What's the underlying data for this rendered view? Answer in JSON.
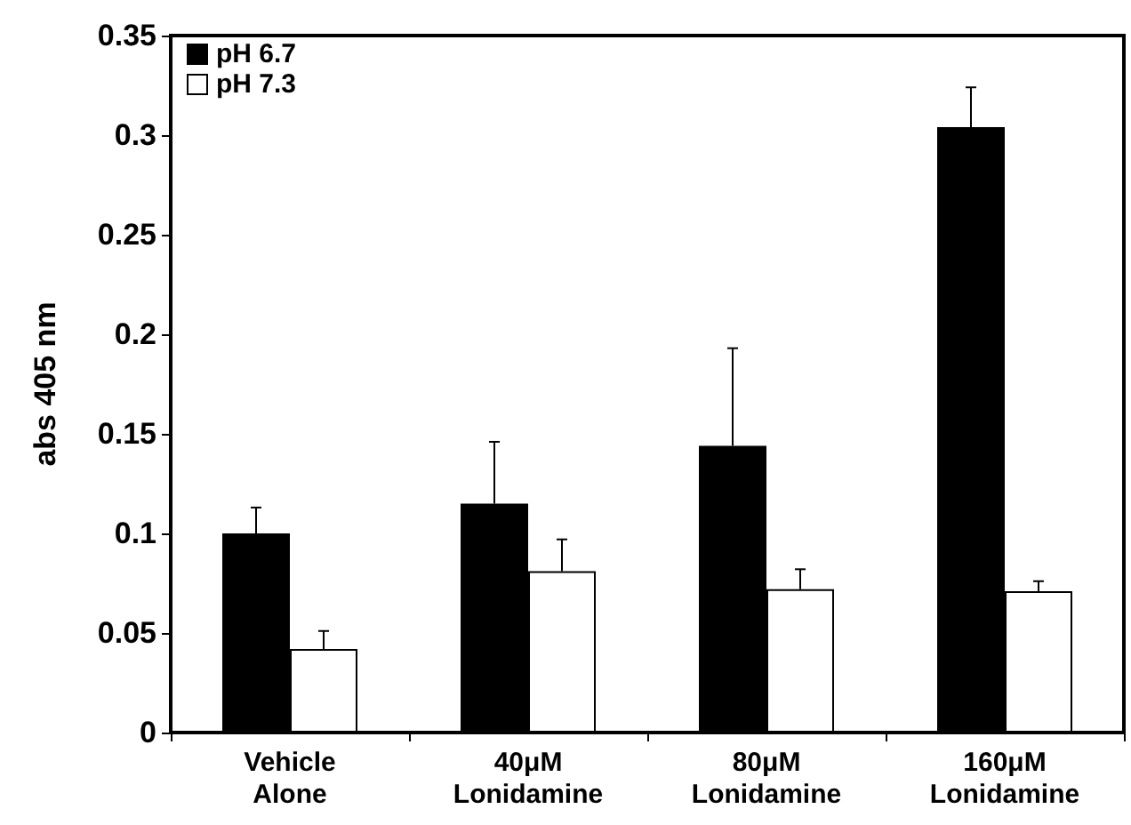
{
  "chart_data": {
    "type": "bar",
    "ylabel": "abs 405 nm",
    "categories": [
      "Vehicle\nAlone",
      "40μM\nLonidamine",
      "80μM\nLonidamine",
      "160μM\nLonidamine"
    ],
    "series": [
      {
        "name": "pH 6.7",
        "color": "#000000",
        "values": [
          0.1,
          0.115,
          0.144,
          0.304
        ],
        "errors": [
          0.013,
          0.031,
          0.049,
          0.02
        ]
      },
      {
        "name": "pH 7.3",
        "color": "#ffffff",
        "values": [
          0.042,
          0.081,
          0.072,
          0.071
        ],
        "errors": [
          0.009,
          0.016,
          0.01,
          0.005
        ]
      }
    ],
    "ylim": [
      0,
      0.35
    ],
    "yticks": [
      0,
      0.05,
      0.1,
      0.15,
      0.2,
      0.25,
      0.3,
      0.35
    ],
    "grid": false,
    "legend": "top left"
  }
}
